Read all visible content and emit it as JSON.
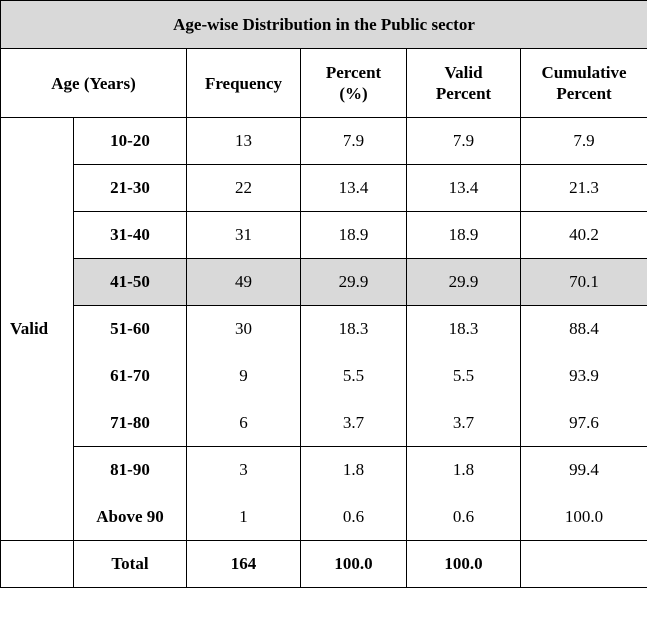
{
  "table": {
    "title": "Age-wise Distribution in the Public sector",
    "header": {
      "age": "Age (Years)",
      "frequency": "Frequency",
      "percent": [
        "Percent",
        "(%)"
      ],
      "valid_percent": [
        "Valid",
        "Percent"
      ],
      "cumulative_percent": [
        "Cumulative",
        "Percent"
      ]
    },
    "group_label": "Valid",
    "rows": [
      {
        "age": "10-20",
        "frequency": "13",
        "percent": "7.9",
        "valid_percent": "7.9",
        "cumulative": "7.9"
      },
      {
        "age": "21-30",
        "frequency": "22",
        "percent": "13.4",
        "valid_percent": "13.4",
        "cumulative": "21.3"
      },
      {
        "age": "31-40",
        "frequency": "31",
        "percent": "18.9",
        "valid_percent": "18.9",
        "cumulative": "40.2"
      },
      {
        "age": "41-50",
        "frequency": "49",
        "percent": "29.9",
        "valid_percent": "29.9",
        "cumulative": "70.1"
      },
      {
        "age": "51-60",
        "frequency": "30",
        "percent": "18.3",
        "valid_percent": "18.3",
        "cumulative": "88.4"
      },
      {
        "age": "61-70",
        "frequency": "9",
        "percent": "5.5",
        "valid_percent": "5.5",
        "cumulative": "93.9"
      },
      {
        "age": "71-80",
        "frequency": "6",
        "percent": "3.7",
        "valid_percent": "3.7",
        "cumulative": "97.6"
      },
      {
        "age": "81-90",
        "frequency": "3",
        "percent": "1.8",
        "valid_percent": "1.8",
        "cumulative": "99.4"
      },
      {
        "age": "Above 90",
        "frequency": "1",
        "percent": "0.6",
        "valid_percent": "0.6",
        "cumulative": "100.0"
      }
    ],
    "total": {
      "label": "Total",
      "frequency": "164",
      "percent": "100.0",
      "valid_percent": "100.0",
      "cumulative": ""
    },
    "colors": {
      "title_bg": "#d9d9d9",
      "highlight_row_bg": "#d9d9d9",
      "border": "#000000"
    },
    "highlight_row_index": 3
  }
}
